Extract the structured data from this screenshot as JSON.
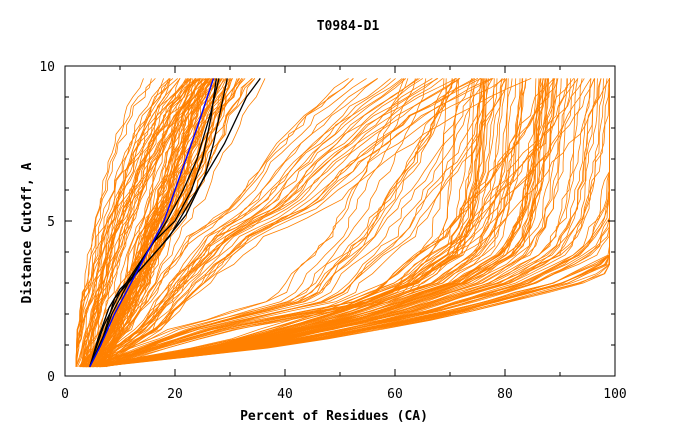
{
  "chart_data": {
    "type": "line",
    "title": "T0984-D1",
    "xlabel": "Percent of Residues (CA)",
    "ylabel": "Distance Cutoff, A",
    "xlim": [
      0,
      100
    ],
    "ylim": [
      0,
      10
    ],
    "xticks": [
      0,
      20,
      40,
      60,
      80,
      100
    ],
    "xtick_labels": [
      "0",
      "20",
      "40",
      "60",
      "80",
      "100"
    ],
    "yticks": [
      0,
      5,
      10
    ],
    "ytick_labels": [
      "0",
      "5",
      "10"
    ],
    "background_color": "#ffffff",
    "grid": false,
    "series_groups": [
      {
        "name": "other models",
        "color": "#ff8000",
        "count": 240,
        "curve_shapes": [
          {
            "name": "steep-left",
            "x": [
              2.5,
              4,
              6,
              8,
              10,
              13,
              17,
              22
            ],
            "y": [
              0.3,
              1.5,
              3,
              4.5,
              5.5,
              7,
              8.5,
              9.6
            ]
          },
          {
            "name": "middle-cluster",
            "x": [
              5,
              9,
              13,
              16,
              19,
              22,
              25,
              28
            ],
            "y": [
              0.3,
              1.5,
              3,
              4.5,
              5.5,
              7,
              8.5,
              9.6
            ]
          },
          {
            "name": "steep-plateau",
            "x": [
              5,
              25,
              50,
              55,
              62,
              68,
              74,
              80
            ],
            "y": [
              0.3,
              1.5,
              2.5,
              3.5,
              4.5,
              6,
              7.5,
              9.6
            ]
          },
          {
            "name": "right-cluster",
            "x": [
              5,
              35,
              60,
              78,
              88,
              91,
              93,
              94,
              95
            ],
            "y": [
              0.3,
              1.0,
              2.0,
              3.0,
              4.0,
              5.0,
              6.5,
              8.0,
              9.6
            ]
          },
          {
            "name": "shallow-spread",
            "x": [
              5,
              15,
              22,
              30,
              40,
              48,
              58,
              68
            ],
            "y": [
              0.3,
              1.5,
              3,
              4.5,
              5.5,
              7,
              8.5,
              9.6
            ]
          }
        ]
      },
      {
        "name": "highlighted model",
        "color": "#0000ff",
        "x": [
          4.5,
          6.5,
          9,
          12,
          15,
          18,
          21,
          24,
          27
        ],
        "y": [
          0.3,
          1.0,
          2.0,
          3.0,
          4.0,
          5.0,
          6.5,
          8.0,
          9.6
        ]
      },
      {
        "name": "reference models",
        "color": "#000000",
        "series": [
          {
            "x": [
              4.5,
              6.5,
              8.5,
              11.5,
              15,
              18.5,
              21.5,
              24,
              26.5,
              28
            ],
            "y": [
              0.3,
              1.0,
              2.0,
              3.0,
              4.0,
              5.0,
              6.0,
              7.0,
              8.5,
              9.6
            ]
          },
          {
            "x": [
              4.5,
              7,
              9,
              13,
              17.5,
              22,
              25.5,
              27,
              29.5
            ],
            "y": [
              0.3,
              1.3,
              2.5,
              3.3,
              4.2,
              5.2,
              6.5,
              7.5,
              9.6
            ]
          },
          {
            "x": [
              4.5,
              6,
              8,
              10,
              14,
              19,
              24,
              29,
              33,
              35.5
            ],
            "y": [
              0.3,
              1.2,
              2.2,
              2.8,
              3.5,
              4.5,
              6.0,
              7.5,
              9.0,
              9.6
            ]
          },
          {
            "x": [
              4.5,
              7,
              10,
              13,
              16,
              20,
              23,
              25,
              26.5,
              27.5
            ],
            "y": [
              0.3,
              1.6,
              2.7,
              3.5,
              4.3,
              5.0,
              6.0,
              7.0,
              8.3,
              9.6
            ]
          }
        ]
      }
    ]
  }
}
